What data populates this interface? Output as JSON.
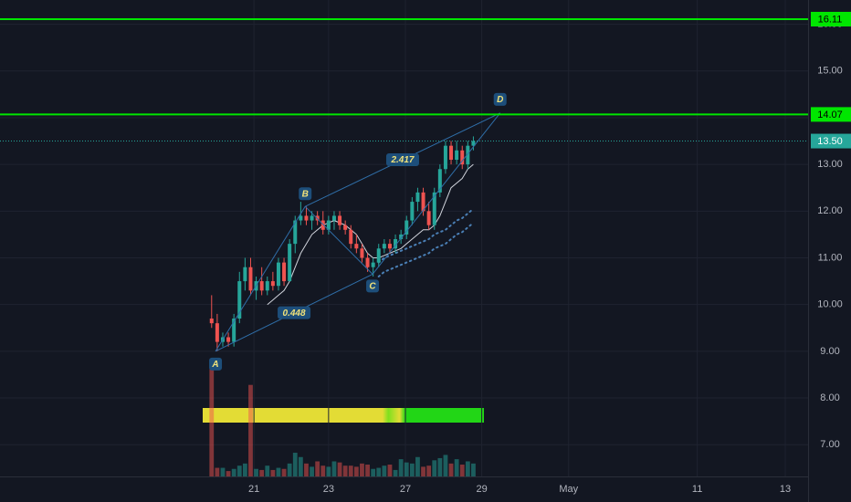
{
  "chart_data": {
    "type": "candlestick",
    "xlim": [
      -38,
      107.1
    ],
    "xticks": [
      {
        "value": 7.6,
        "label": "21"
      },
      {
        "value": 21,
        "label": "23"
      },
      {
        "value": 34.8,
        "label": "27"
      },
      {
        "value": 48.5,
        "label": "29"
      },
      {
        "value": 64.1,
        "label": "May"
      },
      {
        "value": 87.2,
        "label": "11"
      },
      {
        "value": 103,
        "label": "13"
      }
    ],
    "ylim": [
      6.32,
      16.52
    ],
    "yticks": [
      {
        "value": 7,
        "label": "7.00"
      },
      {
        "value": 8,
        "label": "8.00"
      },
      {
        "value": 9,
        "label": "9.00"
      },
      {
        "value": 10,
        "label": "10.00"
      },
      {
        "value": 11,
        "label": "11.00"
      },
      {
        "value": 12,
        "label": "12.00"
      },
      {
        "value": 13,
        "label": "13.00"
      },
      {
        "value": 14,
        "label": "14.00"
      },
      {
        "value": 15,
        "label": "15.00"
      },
      {
        "value": 16,
        "label": "16.00"
      }
    ],
    "grid": true,
    "up_color": "#26a69a",
    "down_color": "#ef5350",
    "open": [
      9.7,
      9.6,
      9.2,
      9.3,
      9.2,
      9.7,
      10.5,
      10.8,
      10.3,
      10.5,
      10.3,
      10.5,
      10.4,
      10.9,
      10.5,
      11.3,
      11.8,
      11.9,
      11.8,
      11.9,
      11.8,
      11.6,
      11.8,
      11.9,
      11.7,
      11.6,
      11.3,
      11.2,
      11.0,
      10.8,
      10.9,
      11.2,
      11.3,
      11.2,
      11.4,
      11.5,
      11.8,
      12.2,
      12.4,
      12.0,
      11.7,
      12.4,
      12.9,
      13.4,
      13.1,
      13.3,
      13.0,
      13.4
    ],
    "high": [
      10.2,
      9.8,
      9.4,
      9.4,
      9.8,
      10.7,
      11.0,
      11.0,
      10.6,
      10.8,
      10.6,
      10.7,
      11.0,
      11.0,
      11.4,
      11.9,
      12.2,
      12.1,
      12.0,
      12.0,
      12.0,
      11.9,
      12.0,
      12.0,
      11.8,
      11.7,
      11.5,
      11.3,
      11.1,
      11.0,
      11.3,
      11.4,
      11.4,
      11.5,
      11.6,
      11.9,
      12.3,
      12.5,
      12.5,
      12.2,
      12.5,
      13.0,
      13.5,
      13.5,
      13.5,
      13.4,
      13.5,
      13.6
    ],
    "low": [
      9.5,
      9.0,
      9.1,
      9.1,
      9.1,
      9.6,
      10.3,
      10.2,
      10.1,
      10.2,
      10.2,
      10.3,
      10.3,
      10.4,
      10.5,
      11.1,
      11.7,
      11.7,
      11.6,
      11.7,
      11.5,
      11.5,
      11.6,
      11.6,
      11.5,
      11.2,
      11.1,
      10.9,
      10.7,
      10.6,
      10.8,
      11.1,
      11.1,
      11.1,
      11.3,
      11.4,
      11.7,
      12.0,
      11.9,
      11.6,
      11.6,
      12.3,
      12.8,
      13.0,
      13.0,
      12.9,
      12.9,
      13.3
    ],
    "close": [
      9.6,
      9.2,
      9.3,
      9.2,
      9.7,
      10.5,
      10.8,
      10.3,
      10.5,
      10.3,
      10.5,
      10.4,
      10.9,
      10.5,
      11.3,
      11.8,
      11.9,
      11.8,
      11.9,
      11.8,
      11.6,
      11.8,
      11.9,
      11.7,
      11.6,
      11.3,
      11.2,
      11.0,
      10.8,
      10.9,
      11.2,
      11.3,
      11.2,
      11.4,
      11.5,
      11.8,
      12.2,
      12.4,
      12.0,
      11.7,
      12.4,
      12.9,
      13.4,
      13.1,
      13.3,
      13.0,
      13.4,
      13.5
    ],
    "volume": [
      100,
      8,
      8,
      5,
      7,
      10,
      12,
      85,
      7,
      6,
      10,
      6,
      8,
      7,
      12,
      22,
      18,
      12,
      9,
      14,
      10,
      9,
      14,
      13,
      10,
      10,
      9,
      12,
      11,
      7,
      8,
      10,
      11,
      6,
      16,
      13,
      12,
      18,
      9,
      10,
      15,
      17,
      20,
      12,
      16,
      11,
      14,
      12
    ],
    "ma": {
      "color": "#d1d4dc",
      "values": [
        null,
        null,
        null,
        null,
        null,
        null,
        null,
        null,
        null,
        null,
        10.0,
        10.1,
        10.2,
        10.3,
        10.5,
        10.8,
        11.1,
        11.3,
        11.5,
        11.6,
        11.7,
        11.75,
        11.8,
        11.75,
        11.7,
        11.6,
        11.5,
        11.3,
        11.1,
        11.0,
        11.0,
        11.05,
        11.1,
        11.15,
        11.2,
        11.3,
        11.4,
        11.5,
        11.6,
        11.6,
        11.7,
        11.9,
        12.2,
        12.5,
        12.6,
        12.7,
        12.9,
        13.0
      ]
    },
    "bands": [
      {
        "color": "#4a7fb5",
        "values": [
          null,
          null,
          null,
          null,
          null,
          null,
          null,
          null,
          null,
          null,
          null,
          null,
          null,
          null,
          null,
          null,
          null,
          null,
          null,
          null,
          null,
          null,
          null,
          null,
          null,
          null,
          null,
          null,
          null,
          null,
          10.9,
          11.0,
          11.05,
          11.1,
          11.15,
          11.2,
          11.25,
          11.3,
          11.35,
          11.4,
          11.5,
          11.55,
          11.6,
          11.7,
          11.8,
          11.85,
          11.95,
          12.05
        ]
      },
      {
        "color": "#4a7fb5",
        "values": [
          null,
          null,
          null,
          null,
          null,
          null,
          null,
          null,
          null,
          null,
          null,
          null,
          null,
          null,
          null,
          null,
          null,
          null,
          null,
          null,
          null,
          null,
          null,
          null,
          null,
          null,
          null,
          null,
          null,
          null,
          10.6,
          10.7,
          10.75,
          10.8,
          10.85,
          10.9,
          10.95,
          11.0,
          11.05,
          11.1,
          11.2,
          11.25,
          11.3,
          11.4,
          11.5,
          11.55,
          11.65,
          11.75
        ]
      }
    ],
    "levels": [
      {
        "value": 16.11,
        "label": "16.11",
        "color": "#00e600",
        "style": "solid"
      },
      {
        "value": 14.07,
        "label": "14.07",
        "color": "#00e600",
        "style": "solid"
      },
      {
        "value": 13.5,
        "label": "13.50",
        "color": "#26a69a",
        "style": "dotted"
      }
    ],
    "pattern": [
      {
        "label": "A",
        "x": 0.7,
        "y": 9.0
      },
      {
        "label": "B",
        "x": 16.8,
        "y": 12.1
      },
      {
        "label": "C",
        "x": 28.9,
        "y": 10.65
      },
      {
        "label": "D",
        "x": 51.8,
        "y": 14.1
      }
    ],
    "ratios": [
      0.448,
      2.417
    ]
  }
}
